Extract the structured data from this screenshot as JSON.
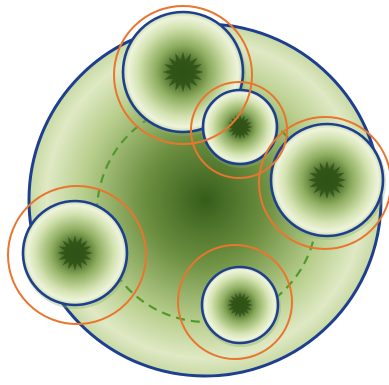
{
  "colors": {
    "background": "#ffffff",
    "outline_blue": "#1e3f8f",
    "highlight_orange": "#e8762f",
    "dashed_green": "#4e9a2e",
    "pale_green": "#e7efcf",
    "light_green": "#c5d8a0",
    "mid_green": "#8fae61",
    "dark_green": "#3f6420",
    "core_green": "#2f5116"
  },
  "diagram": {
    "main_disc": "large-disc",
    "inner_ring_style": "dashed",
    "sub_discs": [
      {
        "name": "top",
        "highlighted": true
      },
      {
        "name": "upper-middle",
        "highlighted": true
      },
      {
        "name": "right",
        "highlighted": true
      },
      {
        "name": "left",
        "highlighted": true
      },
      {
        "name": "bottom",
        "highlighted": true
      }
    ]
  }
}
